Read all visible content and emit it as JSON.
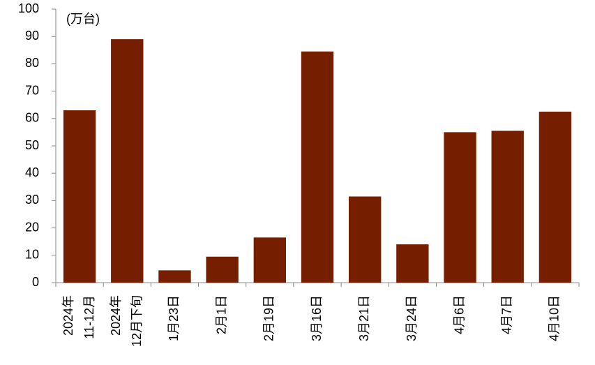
{
  "chart_data": {
    "type": "bar",
    "unit_label": "(万台)",
    "categories": [
      [
        "2024年",
        "11-12月"
      ],
      [
        "2024年",
        "12月下旬"
      ],
      [
        "1月23日"
      ],
      [
        "2月1日"
      ],
      [
        "2月19日"
      ],
      [
        "3月16日"
      ],
      [
        "3月21日"
      ],
      [
        "3月24日"
      ],
      [
        "4月6日"
      ],
      [
        "4月7日"
      ],
      [
        "4月10日"
      ]
    ],
    "values": [
      63,
      89,
      4.5,
      9.5,
      16.5,
      84.5,
      31.5,
      14,
      55,
      55.5,
      62.5
    ],
    "color": "#761f00",
    "ylim": [
      0,
      100
    ],
    "yticks": [
      0,
      10,
      20,
      30,
      40,
      50,
      60,
      70,
      80,
      90,
      100
    ],
    "grid": false
  }
}
